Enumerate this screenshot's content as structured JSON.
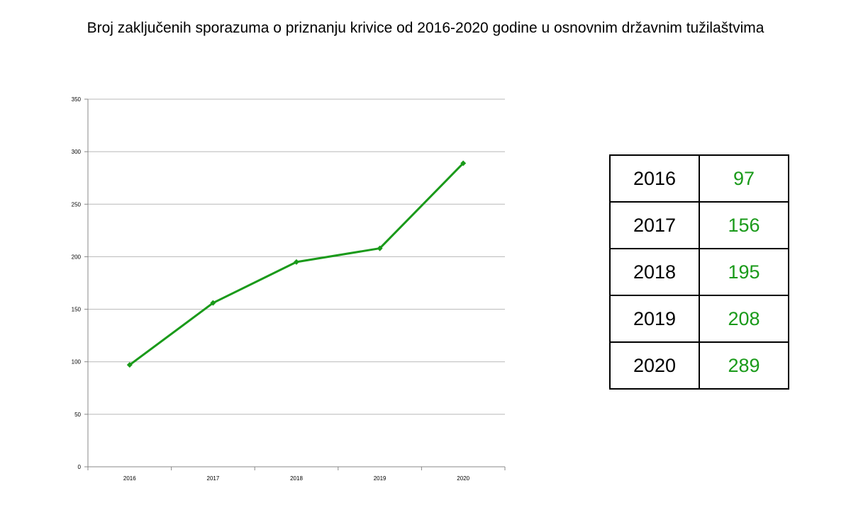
{
  "title": "Broj zaključenih sporazuma o priznanju krivice od 2016-2020 godine u osnovnim državnim tužilaštvima",
  "colors": {
    "series": "#1a9a1a",
    "grid": "#b8b8b8",
    "axis": "#888888",
    "table_value": "#1a9a1a"
  },
  "chart_data": {
    "type": "line",
    "title": "Broj zaključenih sporazuma o priznanju krivice od 2016-2020 godine u osnovnim državnim tužilaštvima",
    "categories": [
      "2016",
      "2017",
      "2018",
      "2019",
      "2020"
    ],
    "series": [
      {
        "values": [
          97,
          156,
          195,
          208,
          289
        ]
      }
    ],
    "xlabel": "",
    "ylabel": "",
    "ylim": [
      0,
      350
    ],
    "yticks": [
      0,
      50,
      100,
      150,
      200,
      250,
      300,
      350
    ],
    "grid": true,
    "legend": "none"
  },
  "table": {
    "rows": [
      {
        "year": "2016",
        "value": "97"
      },
      {
        "year": "2017",
        "value": "156"
      },
      {
        "year": "2018",
        "value": "195"
      },
      {
        "year": "2019",
        "value": "208"
      },
      {
        "year": "2020",
        "value": "289"
      }
    ]
  }
}
